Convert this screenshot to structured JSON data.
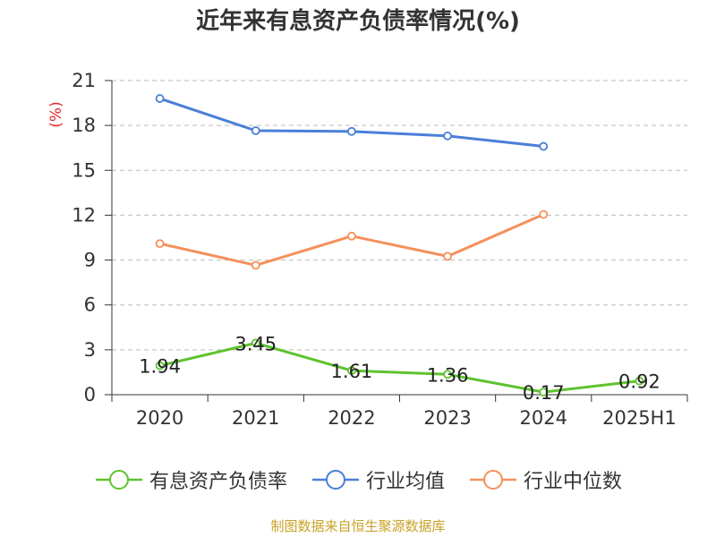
{
  "chart_data": {
    "type": "line",
    "title": "近年来有息资产负债率情况(%)",
    "ylabel": "(%)",
    "xlabel": "",
    "categories": [
      "2020",
      "2021",
      "2022",
      "2023",
      "2024",
      "2025H1"
    ],
    "yticks": [
      0,
      3,
      6,
      9,
      12,
      15,
      18,
      21
    ],
    "ylim": [
      0,
      21
    ],
    "grid": true,
    "legend_position": "bottom",
    "series": [
      {
        "name": "有息资产负债率",
        "color": "#5ec22f",
        "values": [
          1.94,
          3.45,
          1.61,
          1.36,
          0.17,
          0.92
        ],
        "data_labels": [
          "1.94",
          "3.45",
          "1.61",
          "1.36",
          "0.17",
          "0.92"
        ]
      },
      {
        "name": "行业均值",
        "color": "#4a7fd8",
        "values": [
          19.8,
          17.65,
          17.6,
          17.3,
          16.6,
          null
        ]
      },
      {
        "name": "行业中位数",
        "color": "#f5905a",
        "values": [
          10.1,
          8.65,
          10.6,
          9.25,
          12.05,
          null
        ]
      }
    ]
  },
  "source": "制图数据来自恒生聚源数据库"
}
